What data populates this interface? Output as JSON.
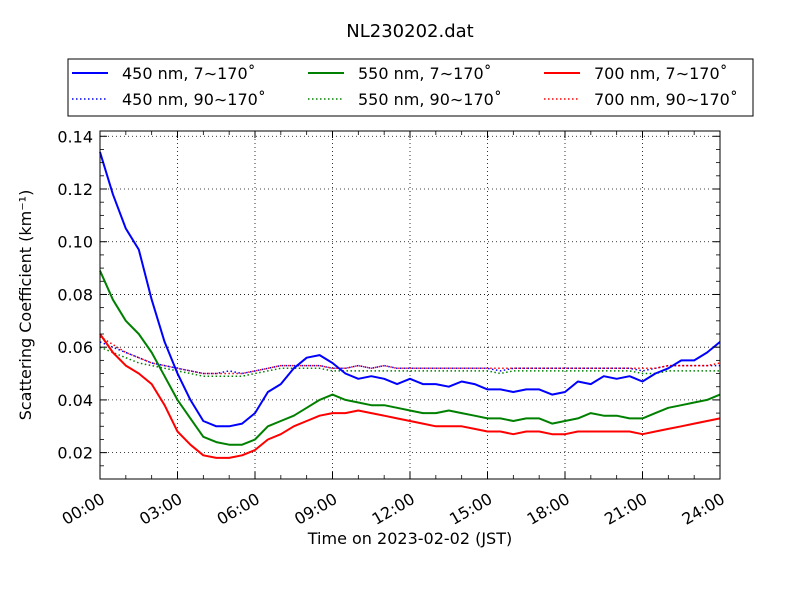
{
  "chart_data": {
    "type": "line",
    "title": "NL230202.dat",
    "xlabel": "Time on 2023-02-02 (JST)",
    "ylabel": "Scattering Coefficient (km⁻¹)",
    "xlim": [
      "00:00",
      "24:00"
    ],
    "ylim": [
      0.01,
      0.142
    ],
    "x_ticks": [
      "00:00",
      "03:00",
      "06:00",
      "09:00",
      "12:00",
      "15:00",
      "18:00",
      "21:00",
      "24:00"
    ],
    "y_ticks": [
      "0.02",
      "0.04",
      "0.06",
      "0.08",
      "0.10",
      "0.12",
      "0.14"
    ],
    "grid": true,
    "legend_position": "top",
    "legend_entries": [
      "450 nm, 7∼170˚",
      "450 nm, 90∼170˚",
      "550 nm, 7∼170˚",
      "550 nm, 90∼170˚",
      "700 nm, 7∼170˚",
      "700 nm, 90∼170˚"
    ],
    "x_hours": [
      0,
      0.5,
      1,
      1.5,
      2,
      2.5,
      3,
      3.5,
      4,
      4.5,
      5,
      5.5,
      6,
      6.5,
      7,
      7.5,
      8,
      8.5,
      9,
      9.5,
      10,
      10.5,
      11,
      11.5,
      12,
      12.5,
      13,
      13.5,
      14,
      14.5,
      15,
      15.5,
      16,
      16.5,
      17,
      17.5,
      18,
      18.5,
      19,
      19.5,
      20,
      20.5,
      21,
      21.5,
      22,
      22.5,
      23,
      23.5,
      24
    ],
    "series": [
      {
        "name": "450 nm, 7∼170˚",
        "color": "#0000ff",
        "style": "solid",
        "values": [
          0.134,
          0.118,
          0.105,
          0.097,
          0.078,
          0.062,
          0.05,
          0.04,
          0.032,
          0.03,
          0.03,
          0.031,
          0.035,
          0.043,
          0.046,
          0.052,
          0.056,
          0.057,
          0.054,
          0.05,
          0.048,
          0.049,
          0.048,
          0.046,
          0.048,
          0.046,
          0.046,
          0.045,
          0.047,
          0.046,
          0.044,
          0.044,
          0.043,
          0.044,
          0.044,
          0.042,
          0.043,
          0.047,
          0.046,
          0.049,
          0.048,
          0.049,
          0.047,
          0.05,
          0.052,
          0.055,
          0.055,
          0.058,
          0.062
        ]
      },
      {
        "name": "450 nm, 90∼170˚",
        "color": "#0000ff",
        "style": "dotted",
        "values": [
          0.062,
          0.06,
          0.058,
          0.056,
          0.054,
          0.053,
          0.052,
          0.051,
          0.05,
          0.05,
          0.051,
          0.05,
          0.051,
          0.052,
          0.053,
          0.053,
          0.053,
          0.053,
          0.052,
          0.052,
          0.053,
          0.052,
          0.053,
          0.052,
          0.052,
          0.052,
          0.052,
          0.052,
          0.052,
          0.052,
          0.052,
          0.051,
          0.052,
          0.052,
          0.052,
          0.052,
          0.052,
          0.052,
          0.052,
          0.052,
          0.052,
          0.052,
          0.051,
          0.052,
          0.053,
          0.053,
          0.053,
          0.053,
          0.053
        ]
      },
      {
        "name": "550 nm, 7∼170˚",
        "color": "#008000",
        "style": "solid",
        "values": [
          0.089,
          0.078,
          0.07,
          0.065,
          0.058,
          0.049,
          0.04,
          0.033,
          0.026,
          0.024,
          0.023,
          0.023,
          0.025,
          0.03,
          0.032,
          0.034,
          0.037,
          0.04,
          0.042,
          0.04,
          0.039,
          0.038,
          0.038,
          0.037,
          0.036,
          0.035,
          0.035,
          0.036,
          0.035,
          0.034,
          0.033,
          0.033,
          0.032,
          0.033,
          0.033,
          0.031,
          0.032,
          0.033,
          0.035,
          0.034,
          0.034,
          0.033,
          0.033,
          0.035,
          0.037,
          0.038,
          0.039,
          0.04,
          0.042
        ]
      },
      {
        "name": "550 nm, 90∼170˚",
        "color": "#008000",
        "style": "dotted",
        "values": [
          0.06,
          0.058,
          0.056,
          0.054,
          0.053,
          0.052,
          0.051,
          0.05,
          0.049,
          0.049,
          0.049,
          0.049,
          0.05,
          0.051,
          0.052,
          0.052,
          0.052,
          0.052,
          0.051,
          0.051,
          0.051,
          0.051,
          0.051,
          0.051,
          0.051,
          0.051,
          0.051,
          0.051,
          0.051,
          0.051,
          0.051,
          0.05,
          0.051,
          0.051,
          0.051,
          0.051,
          0.051,
          0.051,
          0.051,
          0.051,
          0.051,
          0.051,
          0.05,
          0.05,
          0.051,
          0.051,
          0.051,
          0.051,
          0.051
        ]
      },
      {
        "name": "700 nm, 7∼170˚",
        "color": "#ff0000",
        "style": "solid",
        "values": [
          0.065,
          0.058,
          0.053,
          0.05,
          0.046,
          0.038,
          0.028,
          0.023,
          0.019,
          0.018,
          0.018,
          0.019,
          0.021,
          0.025,
          0.027,
          0.03,
          0.032,
          0.034,
          0.035,
          0.035,
          0.036,
          0.035,
          0.034,
          0.033,
          0.032,
          0.031,
          0.03,
          0.03,
          0.03,
          0.029,
          0.028,
          0.028,
          0.027,
          0.028,
          0.028,
          0.027,
          0.027,
          0.028,
          0.028,
          0.028,
          0.028,
          0.028,
          0.027,
          0.028,
          0.029,
          0.03,
          0.031,
          0.032,
          0.033
        ]
      },
      {
        "name": "700 nm, 90∼170˚",
        "color": "#ff0000",
        "style": "dotted",
        "values": [
          0.064,
          0.061,
          0.058,
          0.056,
          0.054,
          0.053,
          0.052,
          0.051,
          0.05,
          0.05,
          0.05,
          0.05,
          0.051,
          0.052,
          0.053,
          0.053,
          0.053,
          0.053,
          0.052,
          0.052,
          0.053,
          0.052,
          0.053,
          0.052,
          0.052,
          0.052,
          0.052,
          0.052,
          0.052,
          0.052,
          0.052,
          0.052,
          0.052,
          0.052,
          0.052,
          0.052,
          0.052,
          0.052,
          0.052,
          0.052,
          0.052,
          0.052,
          0.052,
          0.052,
          0.053,
          0.053,
          0.053,
          0.053,
          0.054
        ]
      }
    ]
  }
}
